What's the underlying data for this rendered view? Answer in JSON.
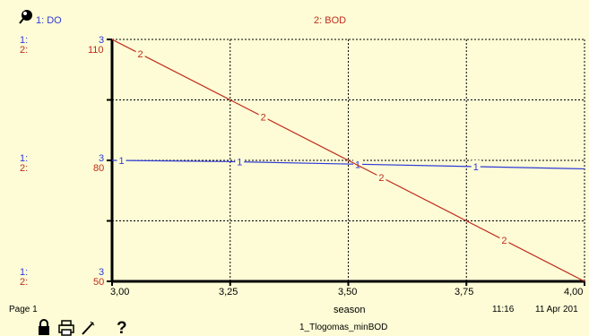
{
  "chart_data": {
    "type": "line",
    "title": "",
    "xlabel": "season",
    "x_range": [
      3.0,
      4.0
    ],
    "x_ticks": [
      "3,00",
      "3,25",
      "3,50",
      "3,75",
      "4,00"
    ],
    "grid": true,
    "series": [
      {
        "name": "1: DO",
        "marker": "1",
        "color": "#2f3ad8",
        "axis": {
          "top": "3",
          "mid": "3",
          "bottom": "3",
          "ylim": [
            2,
            4
          ]
        },
        "x": [
          3.0,
          3.25,
          3.5,
          3.75,
          4.0
        ],
        "y": [
          3.0,
          2.99,
          2.97,
          2.95,
          2.93
        ]
      },
      {
        "name": "2: BOD",
        "marker": "2",
        "color": "#c02c1e",
        "axis": {
          "top": "110",
          "mid": "80",
          "bottom": "50",
          "ylim": [
            50,
            110
          ]
        },
        "x": [
          3.0,
          3.25,
          3.5,
          3.75,
          4.0
        ],
        "y": [
          110,
          95,
          80,
          65,
          50
        ]
      }
    ]
  },
  "header": {
    "do_label": "1: DO",
    "bod_label": "2: BOD",
    "icon": "key-pin-icon"
  },
  "axis_rows": [
    {
      "s1": "1:",
      "s2": "2:",
      "v1": "3",
      "v2": "110"
    },
    {
      "s1": "1:",
      "s2": "2:",
      "v1": "3",
      "v2": "80"
    },
    {
      "s1": "1:",
      "s2": "2:",
      "v1": "3",
      "v2": "50"
    }
  ],
  "footer": {
    "page": "Page 1",
    "time": "11:16",
    "date": "11 Apr 201",
    "model": "1_Tlogomas_minBOD"
  },
  "toolbar": {
    "icons": [
      "lock-icon",
      "print-icon",
      "pencil-icon",
      "help-icon"
    ]
  }
}
